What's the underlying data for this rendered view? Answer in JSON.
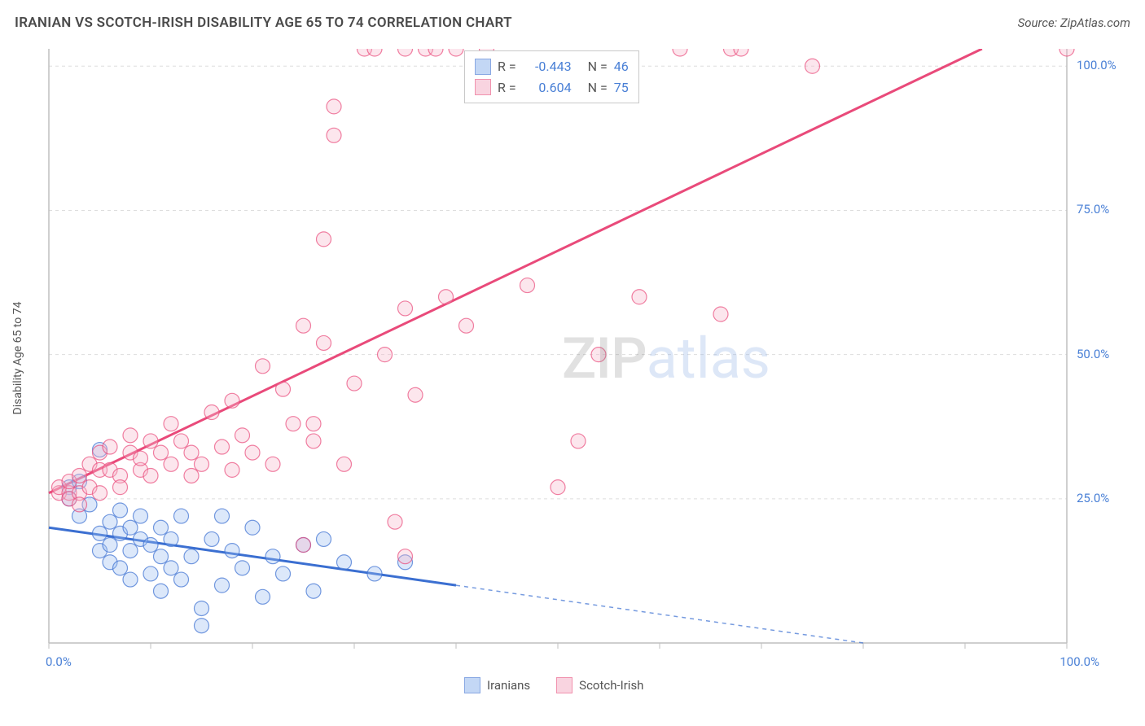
{
  "header": {
    "title": "IRANIAN VS SCOTCH-IRISH DISABILITY AGE 65 TO 74 CORRELATION CHART",
    "source": "Source: ZipAtlas.com"
  },
  "watermark": {
    "part1": "ZIP",
    "part2": "atlas"
  },
  "chart": {
    "type": "scatter",
    "y_axis_label": "Disability Age 65 to 74",
    "xlim": [
      0,
      100
    ],
    "ylim": [
      0,
      103
    ],
    "x_ticks": [
      0,
      10,
      20,
      30,
      40,
      50,
      60,
      70,
      80,
      90,
      100
    ],
    "x_tick_labels_shown": {
      "0": "0.0%",
      "100": "100.0%"
    },
    "y_ticks": [
      25,
      50,
      75,
      100
    ],
    "y_tick_labels": {
      "25": "25.0%",
      "50": "50.0%",
      "75": "75.0%",
      "100": "100.0%"
    },
    "background_color": "#ffffff",
    "grid_color": "#dddddd",
    "axis_color": "#bfbfbf",
    "marker_radius": 9,
    "marker_stroke_width": 1.2,
    "marker_fill_opacity": 0.35,
    "trend_line_width": 3,
    "trend_solid_until_x": 40,
    "series": [
      {
        "name": "Iranians",
        "color_stroke": "#3b6fd1",
        "color_fill": "#9cbdf0",
        "R": "-0.443",
        "N": "46",
        "trend": {
          "x1": 0,
          "y1": 20,
          "x2": 100,
          "y2": -5
        },
        "points": [
          [
            2,
            27
          ],
          [
            2,
            25
          ],
          [
            3,
            28
          ],
          [
            3,
            22
          ],
          [
            4,
            24
          ],
          [
            5,
            33.5
          ],
          [
            5,
            19
          ],
          [
            5,
            16
          ],
          [
            6,
            21
          ],
          [
            6,
            17
          ],
          [
            6,
            14
          ],
          [
            7,
            23
          ],
          [
            7,
            19
          ],
          [
            7,
            13
          ],
          [
            8,
            20
          ],
          [
            8,
            16
          ],
          [
            8,
            11
          ],
          [
            9,
            22
          ],
          [
            9,
            18
          ],
          [
            10,
            17
          ],
          [
            10,
            12
          ],
          [
            11,
            20
          ],
          [
            11,
            15
          ],
          [
            11,
            9
          ],
          [
            12,
            18
          ],
          [
            12,
            13
          ],
          [
            13,
            22
          ],
          [
            13,
            11
          ],
          [
            14,
            15
          ],
          [
            15,
            6
          ],
          [
            15,
            3
          ],
          [
            16,
            18
          ],
          [
            17,
            22
          ],
          [
            17,
            10
          ],
          [
            18,
            16
          ],
          [
            19,
            13
          ],
          [
            20,
            20
          ],
          [
            21,
            8
          ],
          [
            22,
            15
          ],
          [
            23,
            12
          ],
          [
            25,
            17
          ],
          [
            26,
            9
          ],
          [
            27,
            18
          ],
          [
            29,
            14
          ],
          [
            32,
            12
          ],
          [
            35,
            14
          ]
        ]
      },
      {
        "name": "Scotch-Irish",
        "color_stroke": "#e94a7a",
        "color_fill": "#f6b8cc",
        "R": "0.604",
        "N": "75",
        "trend": {
          "x1": 0,
          "y1": 26,
          "x2": 100,
          "y2": 110
        },
        "points": [
          [
            1,
            26
          ],
          [
            1,
            27
          ],
          [
            2,
            26
          ],
          [
            2,
            28
          ],
          [
            2,
            25
          ],
          [
            3,
            29
          ],
          [
            3,
            26
          ],
          [
            3,
            24
          ],
          [
            4,
            31
          ],
          [
            4,
            27
          ],
          [
            5,
            30
          ],
          [
            5,
            33
          ],
          [
            5,
            26
          ],
          [
            6,
            30
          ],
          [
            6,
            34
          ],
          [
            7,
            29
          ],
          [
            7,
            27
          ],
          [
            8,
            33
          ],
          [
            8,
            36
          ],
          [
            9,
            30
          ],
          [
            9,
            32
          ],
          [
            10,
            35
          ],
          [
            10,
            29
          ],
          [
            11,
            33
          ],
          [
            12,
            31
          ],
          [
            12,
            38
          ],
          [
            13,
            35
          ],
          [
            14,
            29
          ],
          [
            14,
            33
          ],
          [
            15,
            31
          ],
          [
            16,
            40
          ],
          [
            17,
            34
          ],
          [
            18,
            42
          ],
          [
            18,
            30
          ],
          [
            19,
            36
          ],
          [
            20,
            33
          ],
          [
            21,
            48
          ],
          [
            22,
            31
          ],
          [
            23,
            44
          ],
          [
            24,
            38
          ],
          [
            25,
            55
          ],
          [
            25,
            17
          ],
          [
            26,
            35
          ],
          [
            27,
            52
          ],
          [
            27,
            70
          ],
          [
            28,
            93
          ],
          [
            28,
            88
          ],
          [
            29,
            31
          ],
          [
            30,
            45
          ],
          [
            31,
            103
          ],
          [
            32,
            103
          ],
          [
            33,
            50
          ],
          [
            34,
            21
          ],
          [
            35,
            58
          ],
          [
            35,
            15
          ],
          [
            36,
            43
          ],
          [
            37,
            103
          ],
          [
            38,
            103
          ],
          [
            39,
            60
          ],
          [
            40,
            103
          ],
          [
            41,
            55
          ],
          [
            43,
            103
          ],
          [
            47,
            62
          ],
          [
            50,
            27
          ],
          [
            52,
            35
          ],
          [
            54,
            50
          ],
          [
            58,
            60
          ],
          [
            62,
            103
          ],
          [
            66,
            57
          ],
          [
            67,
            103
          ],
          [
            68,
            103
          ],
          [
            75,
            100
          ],
          [
            100,
            103
          ],
          [
            35,
            103
          ],
          [
            26,
            38
          ]
        ]
      }
    ]
  },
  "legend_top": {
    "r_label": "R =",
    "n_label": "N ="
  },
  "legend_bottom": {
    "items": [
      "Iranians",
      "Scotch-Irish"
    ]
  }
}
